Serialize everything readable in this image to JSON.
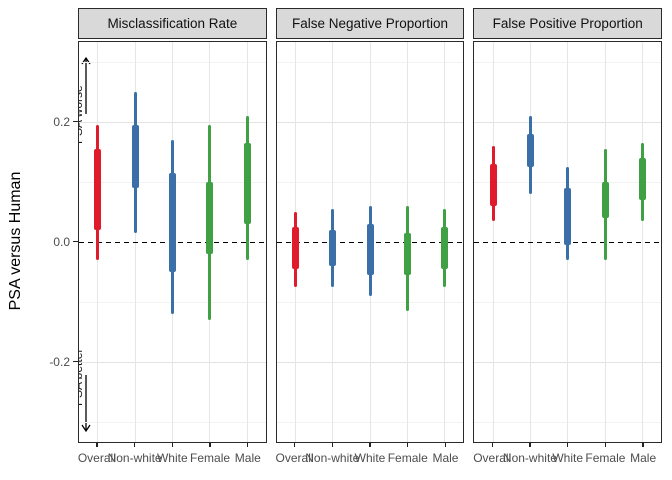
{
  "y_axis": {
    "title": "PSA versus Human",
    "tick_labels": [
      "0.2",
      "0.0",
      "-0.2"
    ],
    "tick_values": [
      0.2,
      0.0,
      -0.2
    ]
  },
  "chart_data": {
    "type": "interval",
    "orientation": "vertical",
    "categories": [
      "Overall",
      "Non-white",
      "White",
      "Female",
      "Male"
    ],
    "group_colors": {
      "Overall": "#E01B2B",
      "Non-white": "#3A6FA8",
      "White": "#3A6FA8",
      "Female": "#3FA044",
      "Male": "#3FA044"
    },
    "y_range": [
      -0.335,
      0.333
    ],
    "y_major_gridlines": [
      0.2,
      -0.2
    ],
    "y_minor_gridlines": [
      0.3,
      0.1,
      -0.1,
      -0.3
    ],
    "zero_line": {
      "value": 0.0,
      "style": "dashed",
      "color": "#000000"
    },
    "annotations": [
      {
        "label": "PSA worse",
        "arrow": "up",
        "position": "top-left-first-facet"
      },
      {
        "label": "PSA better",
        "arrow": "down",
        "position": "bottom-left-first-facet"
      }
    ],
    "facets": [
      {
        "title": "Misclassification Rate",
        "intervals": [
          {
            "category": "Overall",
            "outer": [
              -0.03,
              0.195
            ],
            "inner": [
              0.02,
              0.155
            ]
          },
          {
            "category": "Non-white",
            "outer": [
              0.015,
              0.25
            ],
            "inner": [
              0.09,
              0.195
            ]
          },
          {
            "category": "White",
            "outer": [
              -0.12,
              0.17
            ],
            "inner": [
              -0.05,
              0.115
            ]
          },
          {
            "category": "Female",
            "outer": [
              -0.13,
              0.195
            ],
            "inner": [
              -0.02,
              0.1
            ]
          },
          {
            "category": "Male",
            "outer": [
              -0.03,
              0.21
            ],
            "inner": [
              0.03,
              0.165
            ]
          }
        ]
      },
      {
        "title": "False Negative Proportion",
        "intervals": [
          {
            "category": "Overall",
            "outer": [
              -0.075,
              0.05
            ],
            "inner": [
              -0.045,
              0.025
            ]
          },
          {
            "category": "Non-white",
            "outer": [
              -0.075,
              0.055
            ],
            "inner": [
              -0.04,
              0.02
            ]
          },
          {
            "category": "White",
            "outer": [
              -0.09,
              0.06
            ],
            "inner": [
              -0.055,
              0.03
            ]
          },
          {
            "category": "Female",
            "outer": [
              -0.115,
              0.06
            ],
            "inner": [
              -0.055,
              0.015
            ]
          },
          {
            "category": "Male",
            "outer": [
              -0.075,
              0.055
            ],
            "inner": [
              -0.045,
              0.025
            ]
          }
        ]
      },
      {
        "title": "False Positive Proportion",
        "intervals": [
          {
            "category": "Overall",
            "outer": [
              0.035,
              0.16
            ],
            "inner": [
              0.06,
              0.13
            ]
          },
          {
            "category": "Non-white",
            "outer": [
              0.08,
              0.21
            ],
            "inner": [
              0.125,
              0.18
            ]
          },
          {
            "category": "White",
            "outer": [
              -0.03,
              0.125
            ],
            "inner": [
              -0.005,
              0.09
            ]
          },
          {
            "category": "Female",
            "outer": [
              -0.03,
              0.155
            ],
            "inner": [
              0.04,
              0.1
            ]
          },
          {
            "category": "Male",
            "outer": [
              0.035,
              0.165
            ],
            "inner": [
              0.07,
              0.14
            ]
          }
        ]
      }
    ]
  },
  "styles": {
    "header_bg": "#D9D9D9",
    "panel_border": "#2A2A2A",
    "grid_major": "#E4E4E4",
    "grid_minor": "#F2F2F2",
    "tick_text_color": "#4D4D4D"
  }
}
